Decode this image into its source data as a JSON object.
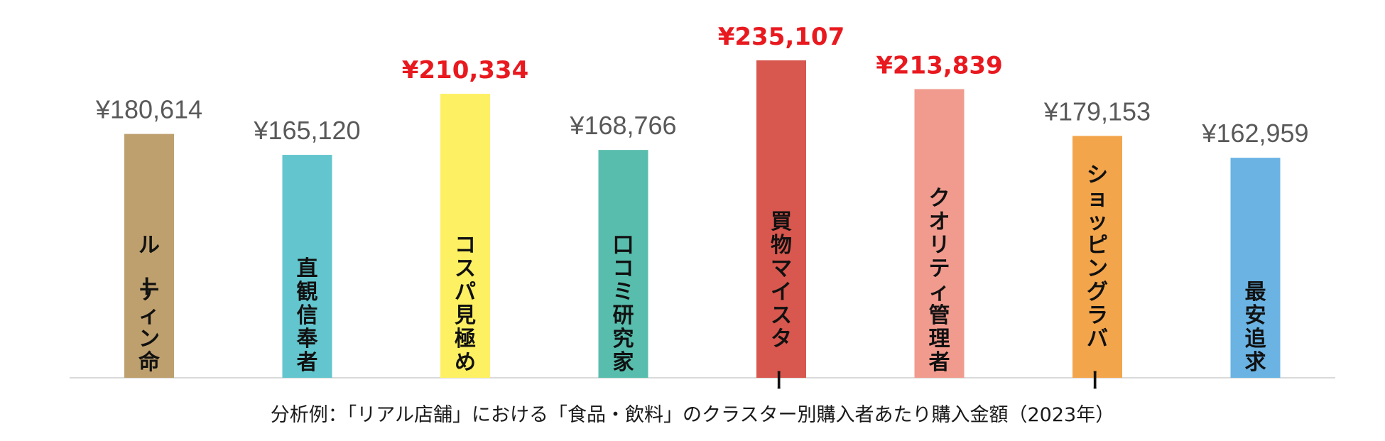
{
  "chart_data": {
    "type": "bar",
    "categories": [
      "ルーティン命",
      "直観信奉者",
      "コスパ見極め",
      "口コミ研究家",
      "買物マイスター",
      "クオリティ管理者",
      "ショッピングラバー",
      "最安追求"
    ],
    "values": [
      180614,
      165120,
      210334,
      168766,
      235107,
      213839,
      179153,
      162959
    ],
    "value_labels": [
      "¥180,614",
      "¥165,120",
      "¥210,334",
      "¥168,766",
      "¥235,107",
      "¥213,839",
      "¥179,153",
      "¥162,959"
    ],
    "highlighted": [
      false,
      false,
      true,
      false,
      true,
      true,
      false,
      false
    ],
    "bar_colors": [
      "#bea06e",
      "#63c5cd",
      "#fdf062",
      "#58bdad",
      "#d8574e",
      "#f09b8e",
      "#f3a54b",
      "#6ab3e3"
    ],
    "highlight_color": "#e8191f",
    "ylim": [
      0,
      235107
    ],
    "grid": false,
    "legend": "none",
    "caption": "分析例：「リアル店舗」における「食品・飲料」のクラスター別購入者あたり購入金額（2023年）"
  }
}
